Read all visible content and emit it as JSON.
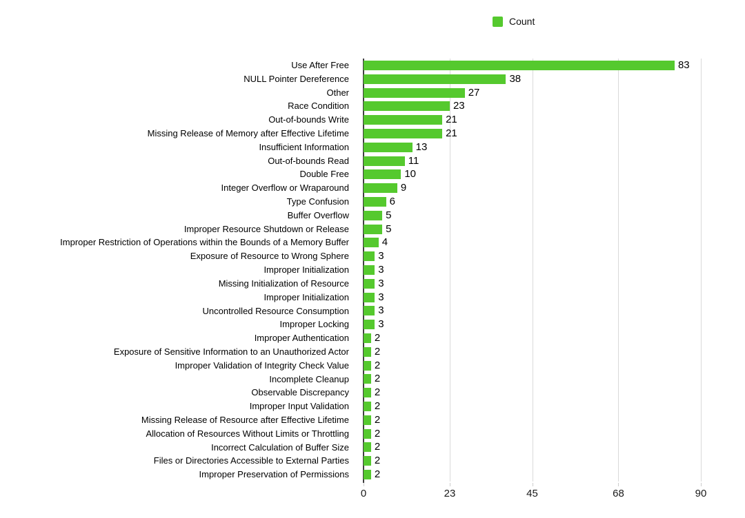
{
  "legend": {
    "label": "Count",
    "color": "#55C92E",
    "position": "top"
  },
  "colors": {
    "bar": "#55C92E",
    "axis_line": "#3F3F3F",
    "gridline": "#D9D9D9",
    "text": "#000000",
    "background": "#FFFFFF"
  },
  "chart_data": {
    "type": "bar",
    "orientation": "horizontal",
    "title": "",
    "xlabel": "",
    "ylabel": "",
    "series_name": "Count",
    "xlim": [
      0,
      90
    ],
    "x_ticks": [
      0,
      23,
      45,
      68,
      90
    ],
    "grid": true,
    "legend_position": "top",
    "bar_color": "#55C92E",
    "categories": [
      "Use After Free",
      "NULL Pointer Dereference",
      "Other",
      "Race Condition",
      "Out-of-bounds Write",
      "Missing Release of Memory after Effective Lifetime",
      "Insufficient Information",
      "Out-of-bounds Read",
      "Double Free",
      "Integer Overflow or Wraparound",
      "Type Confusion",
      "Buffer Overflow",
      "Improper Resource Shutdown or Release",
      "Improper Restriction of Operations within the Bounds of a Memory Buffer",
      "Exposure of Resource to Wrong Sphere",
      "Improper Initialization",
      "Missing Initialization of Resource",
      "Improper Initialization",
      "Uncontrolled Resource Consumption",
      "Improper Locking",
      "Improper Authentication",
      "Exposure of Sensitive Information to an Unauthorized Actor",
      "Improper Validation of Integrity Check Value",
      "Incomplete Cleanup",
      "Observable Discrepancy",
      "Improper Input Validation",
      "Missing Release of Resource after Effective Lifetime",
      "Allocation of Resources Without Limits or Throttling",
      "Incorrect Calculation of Buffer Size",
      "Files or Directories Accessible to External Parties",
      "Improper Preservation of Permissions"
    ],
    "values": [
      83,
      38,
      27,
      23,
      21,
      21,
      13,
      11,
      10,
      9,
      6,
      5,
      5,
      4,
      3,
      3,
      3,
      3,
      3,
      3,
      2,
      2,
      2,
      2,
      2,
      2,
      2,
      2,
      2,
      2,
      2
    ]
  }
}
